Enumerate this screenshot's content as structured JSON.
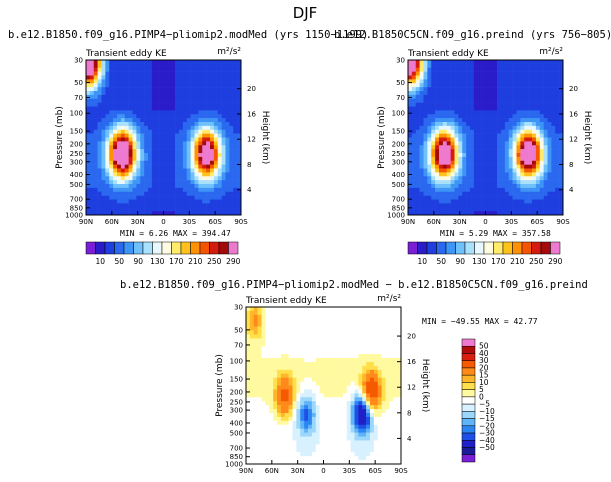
{
  "page_title": "DJF",
  "palette": {
    "full": [
      "#7a1fd6",
      "#2a1cc8",
      "#1e3ee0",
      "#2a68f0",
      "#3e95f5",
      "#6fc0fb",
      "#a9e1fd",
      "#e8f8ff",
      "#fffbe0",
      "#ffec6a",
      "#ffc21c",
      "#ff9200",
      "#f55500",
      "#d51a10",
      "#a40a0a",
      "#ee7ad0"
    ],
    "diff": [
      "#7a1fd6",
      "#1a1a9a",
      "#2020c8",
      "#1e50e8",
      "#2c86f2",
      "#5fb3f8",
      "#9bd6fb",
      "#d8f1ff",
      "#ffffff",
      "#fff9a0",
      "#ffe04a",
      "#ffb52a",
      "#ff8a1a",
      "#f55a00",
      "#d9200f",
      "#b00c0c",
      "#ee7ad0"
    ]
  },
  "chart_data": [
    {
      "type": "contour",
      "title": "b.e12.B1850.f09_g16.PIMP4−pliomip2.modMed (yrs 1150−1199)",
      "left_label": "Transient eddy KE",
      "units": "m²/s²",
      "ylabel": "Pressure (mb)",
      "ylabel_right": "Height (km)",
      "x_ticks": [
        "90N",
        "60N",
        "30N",
        "0",
        "30S",
        "60S",
        "90S"
      ],
      "y_ticks": [
        "30",
        "50",
        "70",
        "100",
        "150",
        "200",
        "250",
        "300",
        "400",
        "500",
        "700",
        "850",
        "1000"
      ],
      "y_ticks_right": [
        "4",
        "8",
        "12",
        "16",
        "20"
      ],
      "stats": "MIN =   6.26   MAX =  394.47",
      "min": 6.26,
      "max": 394.47,
      "colorbar_labels": [
        "10",
        "50",
        "90",
        "130",
        "170",
        "210",
        "250",
        "290"
      ],
      "features": [
        {
          "lat": -50,
          "p": 250,
          "peak": 330
        },
        {
          "lat": 48,
          "p": 250,
          "peak": 365
        },
        {
          "lat": 88,
          "p": 32,
          "peak": 390
        }
      ]
    },
    {
      "type": "contour",
      "title": "b.e12.B1850C5CN.f09_g16.preind (yrs 756−805)",
      "left_label": "Transient eddy KE",
      "units": "m²/s²",
      "ylabel": "Pressure (mb)",
      "ylabel_right": "Height (km)",
      "x_ticks": [
        "90N",
        "60N",
        "30N",
        "0",
        "30S",
        "60S",
        "90S"
      ],
      "y_ticks": [
        "30",
        "50",
        "70",
        "100",
        "150",
        "200",
        "250",
        "300",
        "400",
        "500",
        "700",
        "850",
        "1000"
      ],
      "y_ticks_right": [
        "4",
        "8",
        "12",
        "16",
        "20"
      ],
      "stats": "MIN =   5.29   MAX =  357.58",
      "min": 5.29,
      "max": 357.58,
      "colorbar_labels": [
        "10",
        "50",
        "90",
        "130",
        "170",
        "210",
        "250",
        "290"
      ],
      "features": [
        {
          "lat": -50,
          "p": 250,
          "peak": 345
        },
        {
          "lat": 48,
          "p": 250,
          "peak": 340
        },
        {
          "lat": 88,
          "p": 32,
          "peak": 355
        }
      ]
    },
    {
      "type": "contour",
      "title": "b.e12.B1850.f09_g16.PIMP4−pliomip2.modMed − b.e12.B1850C5CN.f09_g16.preind",
      "left_label": "Transient eddy KE",
      "units": "m²/s²",
      "ylabel": "Pressure (mb)",
      "ylabel_right": "Height (km)",
      "x_ticks": [
        "90N",
        "60N",
        "30N",
        "0",
        "30S",
        "60S",
        "90S"
      ],
      "y_ticks": [
        "30",
        "50",
        "70",
        "100",
        "150",
        "200",
        "250",
        "300",
        "400",
        "500",
        "700",
        "850",
        "1000"
      ],
      "y_ticks_right": [
        "4",
        "8",
        "12",
        "16",
        "20"
      ],
      "stats": "MIN = −49.55   MAX =   42.77",
      "min": -49.55,
      "max": 42.77,
      "colorbar_labels": [
        "50",
        "40",
        "30",
        "20",
        "15",
        "10",
        "5",
        "0",
        "−5",
        "−10",
        "−15",
        "−20",
        "−30",
        "−40",
        "−50"
      ],
      "features": [
        {
          "lat": -45,
          "p": 320,
          "peak": -48
        },
        {
          "lat": -55,
          "p": 200,
          "peak": 40
        },
        {
          "lat": 45,
          "p": 220,
          "peak": 30
        },
        {
          "lat": 20,
          "p": 330,
          "peak": -25
        },
        {
          "lat": 80,
          "p": 40,
          "peak": 20
        }
      ]
    }
  ]
}
